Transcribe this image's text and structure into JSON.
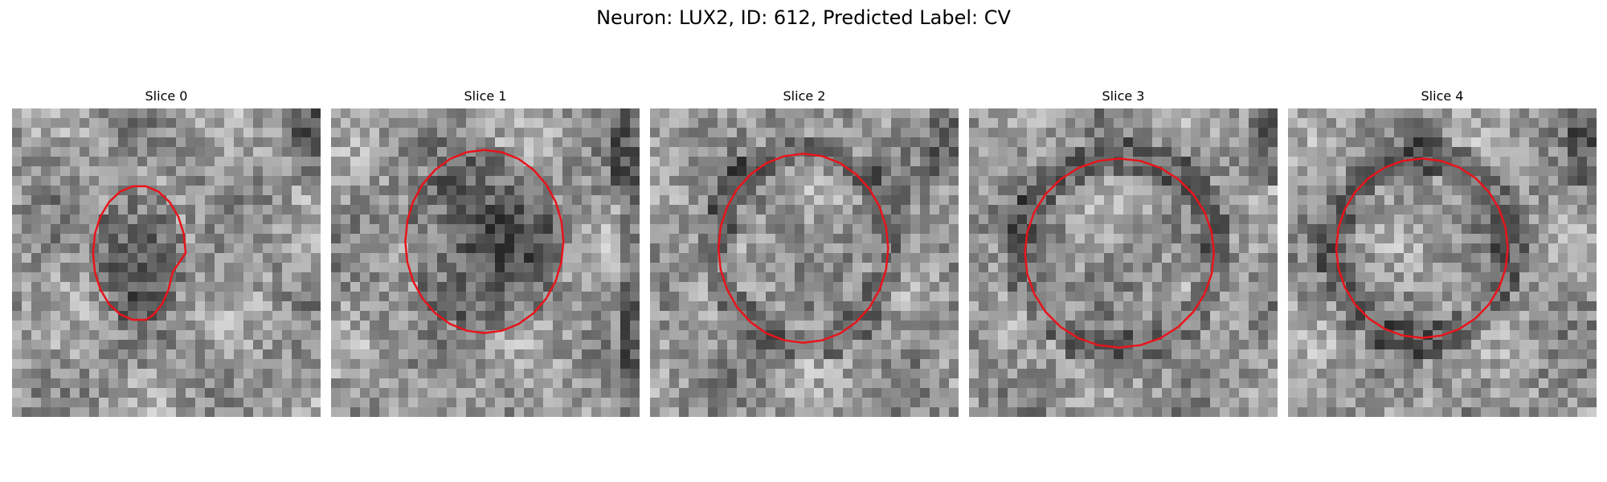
{
  "figure": {
    "title": "Neuron: LUX2, ID: 612, Predicted Label: CV"
  },
  "style": {
    "contour_color": "#e8141b",
    "colormap": "grayscale"
  },
  "slices": [
    {
      "title": "Slice 0"
    },
    {
      "title": "Slice 1"
    },
    {
      "title": "Slice 2"
    },
    {
      "title": "Slice 3"
    },
    {
      "title": "Slice 4"
    }
  ]
}
